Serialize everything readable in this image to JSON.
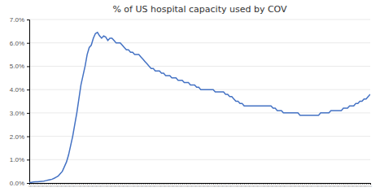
{
  "chart_data": {
    "type": "line",
    "title": "% of US hospital capacity used by COV",
    "categories": [
      "//",
      "//",
      "//",
      "//",
      "//",
      "//",
      "//",
      "//",
      "//",
      "//",
      "//",
      "//",
      "//",
      "//",
      "//",
      "//",
      "//",
      "//",
      "//",
      "//",
      "//",
      "//",
      "//",
      "//",
      "//",
      "//",
      "//",
      "//",
      "//",
      "//",
      "//",
      "//",
      "//",
      "//",
      "//",
      "//",
      "//",
      "//",
      "//",
      "//",
      "//",
      "//",
      "//",
      "//",
      "//",
      "//",
      "//",
      "//",
      "//",
      "//",
      "//",
      "//",
      "//",
      "//",
      "//",
      "//",
      "//",
      "//",
      "//",
      "//",
      "//",
      "//",
      "//",
      "//",
      "//",
      "//",
      "//",
      "//",
      "//",
      "//",
      "//",
      "//",
      "//",
      "//",
      "//",
      "//",
      "//",
      "//",
      "//",
      "//",
      "//",
      "//",
      "//",
      "//",
      "//",
      "//",
      "//",
      "//",
      "//",
      "//",
      "//",
      "//",
      "//",
      "//",
      "//",
      "//",
      "//",
      "//",
      "//",
      "//",
      "//",
      "//",
      "//",
      "//",
      "//",
      "//",
      "//",
      "//",
      "//",
      "//",
      "//",
      "//",
      "//",
      "//",
      "//",
      "//",
      "//",
      "//",
      "//",
      "//",
      "//",
      "//",
      "//",
      "//",
      "//",
      "//",
      "//",
      "//",
      "//",
      "//",
      "//",
      "//",
      "//",
      "//",
      "//",
      "//",
      "//",
      "//",
      "//",
      "//",
      "//",
      "//",
      "//",
      "//",
      "//",
      "//",
      "//",
      "//",
      "//",
      "//",
      "//",
      "//",
      "//",
      "//",
      "//",
      "//",
      "//",
      "//",
      "//",
      "//",
      "//",
      "//",
      "//",
      "//",
      "//",
      "//"
    ],
    "values": [
      0.0003,
      0.0003,
      0.0004,
      0.0005,
      0.0005,
      0.0006,
      0.0007,
      0.0008,
      0.001,
      0.0012,
      0.0014,
      0.0016,
      0.002,
      0.0025,
      0.003,
      0.004,
      0.005,
      0.007,
      0.009,
      0.012,
      0.016,
      0.02,
      0.025,
      0.03,
      0.036,
      0.042,
      0.046,
      0.05,
      0.055,
      0.058,
      0.059,
      0.062,
      0.064,
      0.0645,
      0.063,
      0.062,
      0.063,
      0.0625,
      0.061,
      0.062,
      0.062,
      0.061,
      0.06,
      0.06,
      0.06,
      0.059,
      0.058,
      0.057,
      0.057,
      0.056,
      0.056,
      0.055,
      0.055,
      0.055,
      0.054,
      0.053,
      0.052,
      0.051,
      0.05,
      0.049,
      0.049,
      0.048,
      0.048,
      0.048,
      0.047,
      0.047,
      0.046,
      0.046,
      0.046,
      0.045,
      0.045,
      0.045,
      0.044,
      0.044,
      0.044,
      0.043,
      0.043,
      0.043,
      0.042,
      0.042,
      0.042,
      0.041,
      0.041,
      0.04,
      0.04,
      0.04,
      0.04,
      0.04,
      0.04,
      0.04,
      0.039,
      0.039,
      0.039,
      0.039,
      0.039,
      0.038,
      0.038,
      0.037,
      0.037,
      0.036,
      0.035,
      0.035,
      0.034,
      0.034,
      0.033,
      0.033,
      0.033,
      0.033,
      0.033,
      0.033,
      0.033,
      0.033,
      0.033,
      0.033,
      0.033,
      0.033,
      0.033,
      0.033,
      0.032,
      0.032,
      0.031,
      0.031,
      0.031,
      0.03,
      0.03,
      0.03,
      0.03,
      0.03,
      0.03,
      0.03,
      0.03,
      0.029,
      0.029,
      0.029,
      0.029,
      0.029,
      0.029,
      0.029,
      0.029,
      0.029,
      0.029,
      0.03,
      0.03,
      0.03,
      0.03,
      0.03,
      0.031,
      0.031,
      0.031,
      0.031,
      0.031,
      0.031,
      0.032,
      0.032,
      0.032,
      0.033,
      0.033,
      0.033,
      0.034,
      0.034,
      0.035,
      0.035,
      0.036,
      0.036,
      0.037,
      0.038
    ],
    "color": "#4472C4",
    "ylim": [
      0.0,
      0.07
    ],
    "yticks": [
      {
        "value": 0.0,
        "label": "0.0%"
      },
      {
        "value": 0.01,
        "label": "1.0%"
      },
      {
        "value": 0.02,
        "label": "2.0%"
      },
      {
        "value": 0.03,
        "label": "3.0%"
      },
      {
        "value": 0.04,
        "label": "4.0%"
      },
      {
        "value": 0.05,
        "label": "5.0%"
      },
      {
        "value": 0.06,
        "label": "6.0%"
      },
      {
        "value": 0.07,
        "label": "7.0%"
      }
    ],
    "grid": true
  }
}
